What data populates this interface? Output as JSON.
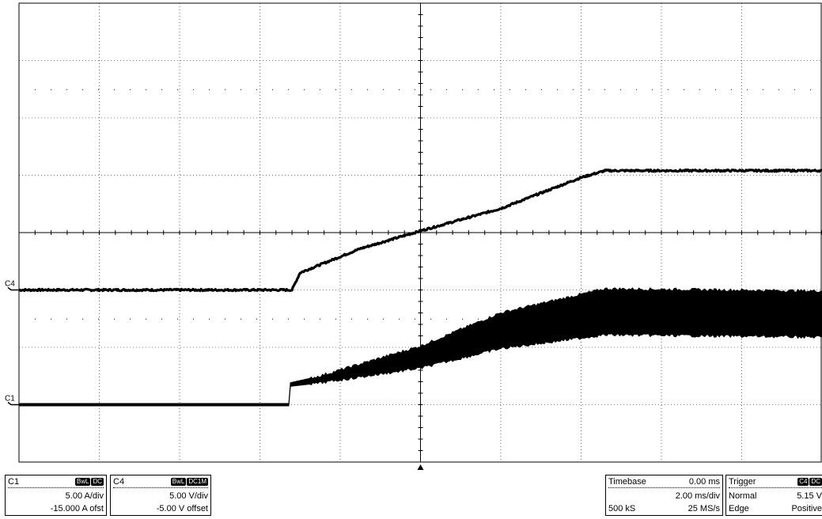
{
  "chart_data": {
    "type": "line",
    "title": "",
    "xlabel": "",
    "ylabel": "",
    "grid": true,
    "divisions": {
      "x": 10,
      "y": 8
    },
    "x_units": "ms",
    "x_range_ms": [
      -10.0,
      10.0
    ],
    "series": [
      {
        "name": "C4",
        "marker_label": "C4",
        "units": "V",
        "scale_per_div": 5.0,
        "offset": -5.0,
        "marker_value": 0,
        "noise": 0.08,
        "x": [
          -10.0,
          -3.2,
          -3.0,
          -1.5,
          0.0,
          2.0,
          4.0,
          4.6,
          10.0
        ],
        "y": [
          0.0,
          0.0,
          1.5,
          3.6,
          5.15,
          7.1,
          9.8,
          10.4,
          10.4
        ]
      },
      {
        "name": "C1",
        "marker_label": "C1",
        "units": "A",
        "scale_per_div": 5.0,
        "offset": -15.0,
        "marker_value": 0,
        "ribbon": true,
        "x": [
          -10.0,
          -3.25,
          -3.25,
          -2.5,
          0.0,
          2.0,
          4.6,
          10.0
        ],
        "y_low": [
          0.0,
          0.0,
          1.7,
          2.0,
          3.3,
          5.0,
          6.2,
          6.0
        ],
        "y_high": [
          0.0,
          0.0,
          1.8,
          2.4,
          5.0,
          7.9,
          10.0,
          9.8
        ]
      }
    ],
    "trigger_marker_ms": 0.0
  },
  "panels": {
    "c1": {
      "name": "C1",
      "badge1": "BwL",
      "badge2": "DC",
      "scale": "5.00 A/div",
      "offset": "-15.000 A ofst"
    },
    "c4": {
      "name": "C4",
      "badge1": "BwL",
      "badge2": "DC1M",
      "scale": "5.00 V/div",
      "offset": "-5.00 V offset"
    },
    "timebase": {
      "label": "Timebase",
      "delay": "0.00 ms",
      "scale": "2.00 ms/div",
      "samples": "500 kS",
      "rate": "25 MS/s"
    },
    "trigger": {
      "label": "Trigger",
      "badge1": "C4",
      "badge2": "DC",
      "mode": "Normal",
      "level": "5.15 V",
      "type": "Edge",
      "slope": "Positive"
    }
  },
  "colors": {
    "trace": "#000000",
    "grid": "#000000",
    "background": "#ffffff"
  }
}
